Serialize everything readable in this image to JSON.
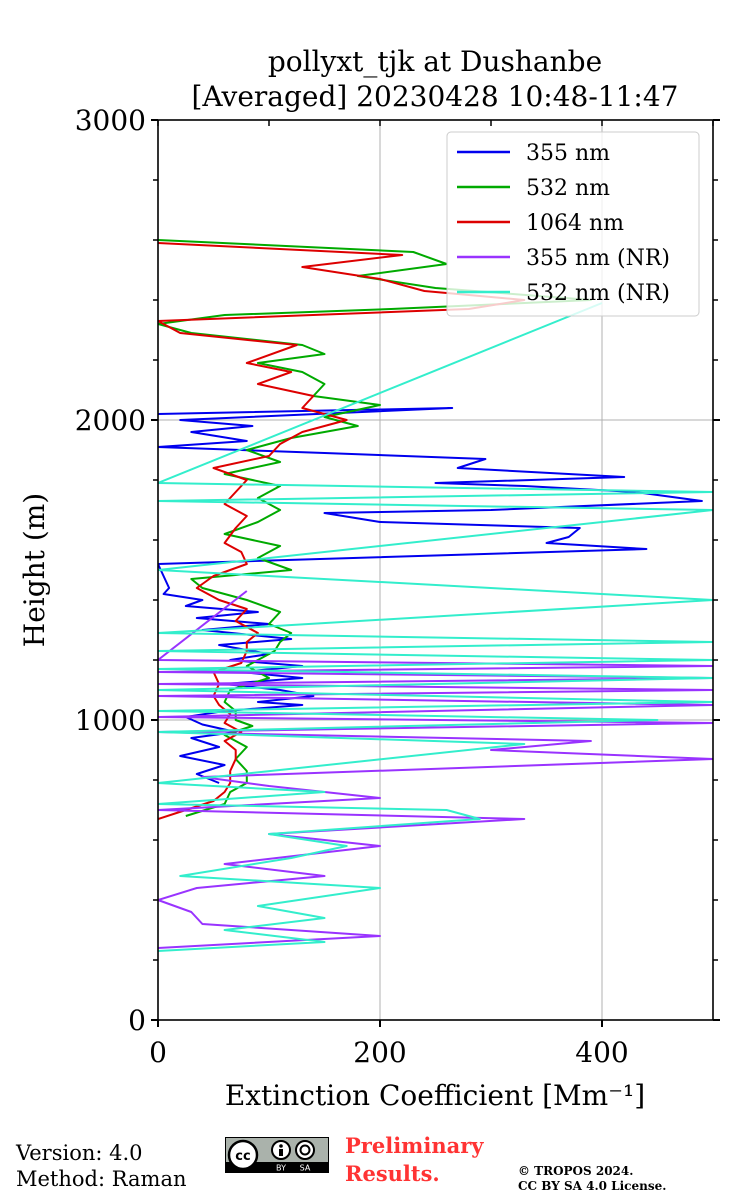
{
  "chart_data": {
    "type": "line",
    "title_line1": "pollyxt_tjk at Dushanbe",
    "title_line2": "[Averaged] 20230428 10:48-11:47",
    "xlabel": "Extinction Coefficient [Mm⁻¹]",
    "ylabel": "Height (m)",
    "xlim": [
      0,
      500
    ],
    "ylim": [
      0,
      3000
    ],
    "xticks": [
      0,
      200,
      400
    ],
    "yticks": [
      0,
      1000,
      2000,
      3000
    ],
    "xtick_labels": [
      "0",
      "200",
      "400"
    ],
    "ytick_labels": [
      "0",
      "1000",
      "2000",
      "3000"
    ],
    "grid": true,
    "legend_position": "top-right",
    "series": [
      {
        "name": "355 nm",
        "color": "#0000ee",
        "points": [
          [
            55,
            790
          ],
          [
            35,
            820
          ],
          [
            60,
            850
          ],
          [
            20,
            880
          ],
          [
            55,
            910
          ],
          [
            30,
            940
          ],
          [
            70,
            960
          ],
          [
            40,
            985
          ],
          [
            25,
            1010
          ],
          [
            60,
            1030
          ],
          [
            130,
            1050
          ],
          [
            90,
            1060
          ],
          [
            140,
            1080
          ],
          [
            110,
            1100
          ],
          [
            60,
            1120
          ],
          [
            130,
            1140
          ],
          [
            75,
            1160
          ],
          [
            130,
            1180
          ],
          [
            65,
            1200
          ],
          [
            100,
            1220
          ],
          [
            55,
            1250
          ],
          [
            120,
            1270
          ],
          [
            40,
            1300
          ],
          [
            100,
            1320
          ],
          [
            35,
            1340
          ],
          [
            90,
            1360
          ],
          [
            25,
            1380
          ],
          [
            40,
            1400
          ],
          [
            5,
            1420
          ],
          [
            10,
            1440
          ],
          [
            0,
            1520
          ],
          [
            440,
            1570
          ],
          [
            350,
            1590
          ],
          [
            370,
            1610
          ],
          [
            380,
            1640
          ],
          [
            200,
            1660
          ],
          [
            150,
            1690
          ],
          [
            300,
            1700
          ],
          [
            490,
            1730
          ],
          [
            430,
            1760
          ],
          [
            330,
            1780
          ],
          [
            250,
            1790
          ],
          [
            420,
            1810
          ],
          [
            270,
            1840
          ],
          [
            295,
            1870
          ],
          [
            150,
            1890
          ],
          [
            0,
            1910
          ],
          [
            80,
            1930
          ],
          [
            30,
            1960
          ],
          [
            85,
            1980
          ],
          [
            20,
            2000
          ],
          [
            265,
            2040
          ],
          [
            0,
            2020
          ]
        ]
      },
      {
        "name": "532 nm",
        "color": "#00aa00",
        "points": [
          [
            25,
            680
          ],
          [
            60,
            720
          ],
          [
            65,
            760
          ],
          [
            80,
            790
          ],
          [
            80,
            830
          ],
          [
            70,
            870
          ],
          [
            80,
            910
          ],
          [
            60,
            950
          ],
          [
            85,
            980
          ],
          [
            70,
            1000
          ],
          [
            70,
            1030
          ],
          [
            60,
            1060
          ],
          [
            65,
            1100
          ],
          [
            100,
            1140
          ],
          [
            80,
            1180
          ],
          [
            105,
            1230
          ],
          [
            110,
            1260
          ],
          [
            120,
            1290
          ],
          [
            100,
            1320
          ],
          [
            110,
            1360
          ],
          [
            80,
            1400
          ],
          [
            40,
            1440
          ],
          [
            30,
            1470
          ],
          [
            120,
            1500
          ],
          [
            90,
            1540
          ],
          [
            110,
            1580
          ],
          [
            60,
            1620
          ],
          [
            90,
            1660
          ],
          [
            110,
            1700
          ],
          [
            90,
            1740
          ],
          [
            110,
            1780
          ],
          [
            60,
            1820
          ],
          [
            110,
            1860
          ],
          [
            80,
            1900
          ],
          [
            120,
            1940
          ],
          [
            180,
            1980
          ],
          [
            150,
            2010
          ],
          [
            200,
            2050
          ],
          [
            140,
            2080
          ],
          [
            150,
            2120
          ],
          [
            130,
            2160
          ],
          [
            90,
            2190
          ],
          [
            150,
            2220
          ],
          [
            130,
            2250
          ],
          [
            30,
            2290
          ],
          [
            0,
            2320
          ],
          [
            60,
            2350
          ],
          [
            210,
            2370
          ],
          [
            390,
            2400
          ],
          [
            250,
            2440
          ],
          [
            180,
            2480
          ],
          [
            260,
            2520
          ],
          [
            230,
            2560
          ],
          [
            0,
            2600
          ]
        ]
      },
      {
        "name": "1064 nm",
        "color": "#dd0000",
        "points": [
          [
            0,
            670
          ],
          [
            25,
            700
          ],
          [
            50,
            730
          ],
          [
            60,
            760
          ],
          [
            65,
            790
          ],
          [
            65,
            830
          ],
          [
            70,
            870
          ],
          [
            70,
            900
          ],
          [
            60,
            930
          ],
          [
            75,
            960
          ],
          [
            60,
            990
          ],
          [
            65,
            1020
          ],
          [
            55,
            1050
          ],
          [
            50,
            1080
          ],
          [
            55,
            1120
          ],
          [
            50,
            1160
          ],
          [
            75,
            1190
          ],
          [
            80,
            1230
          ],
          [
            80,
            1260
          ],
          [
            90,
            1290
          ],
          [
            70,
            1330
          ],
          [
            80,
            1370
          ],
          [
            55,
            1400
          ],
          [
            35,
            1440
          ],
          [
            50,
            1480
          ],
          [
            80,
            1520
          ],
          [
            75,
            1560
          ],
          [
            60,
            1590
          ],
          [
            70,
            1640
          ],
          [
            80,
            1680
          ],
          [
            60,
            1720
          ],
          [
            70,
            1760
          ],
          [
            80,
            1800
          ],
          [
            50,
            1840
          ],
          [
            100,
            1880
          ],
          [
            110,
            1920
          ],
          [
            130,
            1960
          ],
          [
            170,
            2000
          ],
          [
            130,
            2040
          ],
          [
            140,
            2080
          ],
          [
            90,
            2120
          ],
          [
            120,
            2160
          ],
          [
            80,
            2190
          ],
          [
            125,
            2250
          ],
          [
            20,
            2290
          ],
          [
            0,
            2330
          ],
          [
            280,
            2370
          ],
          [
            330,
            2400
          ],
          [
            240,
            2430
          ],
          [
            200,
            2470
          ],
          [
            130,
            2510
          ],
          [
            220,
            2550
          ],
          [
            0,
            2590
          ]
        ]
      },
      {
        "name": "355 nm (NR)",
        "color": "#9933ff",
        "points": [
          [
            0,
            240
          ],
          [
            200,
            280
          ],
          [
            40,
            320
          ],
          [
            30,
            360
          ],
          [
            0,
            400
          ],
          [
            35,
            440
          ],
          [
            150,
            480
          ],
          [
            60,
            520
          ],
          [
            200,
            580
          ],
          [
            100,
            620
          ],
          [
            330,
            670
          ],
          [
            0,
            700
          ],
          [
            200,
            740
          ],
          [
            100,
            780
          ],
          [
            40,
            810
          ],
          [
            500,
            870
          ],
          [
            300,
            900
          ],
          [
            390,
            930
          ],
          [
            0,
            960
          ],
          [
            500,
            990
          ],
          [
            0,
            1010
          ],
          [
            500,
            1050
          ],
          [
            0,
            1080
          ],
          [
            500,
            1100
          ],
          [
            0,
            1120
          ],
          [
            500,
            1140
          ],
          [
            0,
            1160
          ],
          [
            500,
            1180
          ],
          [
            0,
            1200
          ],
          [
            80,
            1430
          ]
        ]
      },
      {
        "name": "532 nm (NR)",
        "color": "#33eecc",
        "points": [
          [
            0,
            230
          ],
          [
            150,
            260
          ],
          [
            60,
            300
          ],
          [
            150,
            340
          ],
          [
            90,
            380
          ],
          [
            200,
            440
          ],
          [
            20,
            480
          ],
          [
            120,
            540
          ],
          [
            170,
            580
          ],
          [
            100,
            620
          ],
          [
            290,
            670
          ],
          [
            260,
            700
          ],
          [
            0,
            720
          ],
          [
            150,
            760
          ],
          [
            0,
            790
          ],
          [
            330,
            920
          ],
          [
            0,
            960
          ],
          [
            450,
            1000
          ],
          [
            0,
            1030
          ],
          [
            500,
            1060
          ],
          [
            0,
            1100
          ],
          [
            500,
            1140
          ],
          [
            0,
            1170
          ],
          [
            500,
            1200
          ],
          [
            0,
            1230
          ],
          [
            500,
            1260
          ],
          [
            0,
            1290
          ],
          [
            500,
            1400
          ],
          [
            0,
            1500
          ],
          [
            500,
            1700
          ],
          [
            0,
            1730
          ],
          [
            500,
            1760
          ],
          [
            0,
            1790
          ],
          [
            400,
            2390
          ]
        ]
      }
    ]
  },
  "footer": {
    "version": "Version: 4.0",
    "method": "Method: Raman",
    "prelim_line1": "Preliminary",
    "prelim_line2": "Results.",
    "copyright_line1": "© TROPOS 2024.",
    "copyright_line2": "CC BY SA 4.0 License.",
    "cc_badge_labels": [
      "BY",
      "SA"
    ]
  }
}
